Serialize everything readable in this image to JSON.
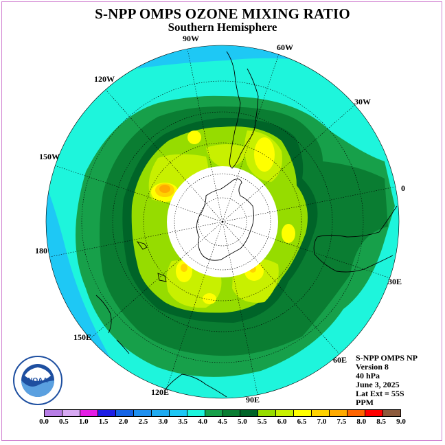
{
  "header": {
    "title": "S-NPP OMPS OZONE MIXING RATIO",
    "subtitle": "Southern Hemisphere"
  },
  "longitude_labels": [
    "90W",
    "60W",
    "30W",
    "0",
    "30E",
    "60E",
    "90E",
    "120E",
    "150E",
    "180",
    "150W",
    "120W"
  ],
  "info": {
    "instrument": "S-NPP OMPS NP",
    "version": "Version 8",
    "level": "40 hPa",
    "date": "June 3, 2025",
    "lat_ext": "Lat Ext = 55S",
    "units": "PPM"
  },
  "logo": {
    "text": "NOAA",
    "ring_text": "NATIONAL OCEANIC AND ATMOSPHERIC ADMINISTRATION · U.S. DEPARTMENT OF COMMERCE"
  },
  "colorbar": {
    "labels": [
      "0.0",
      "0.5",
      "1.0",
      "1.5",
      "2.0",
      "2.5",
      "3.0",
      "3.5",
      "4.0",
      "4.5",
      "5.0",
      "5.5",
      "6.0",
      "6.5",
      "7.0",
      "7.5",
      "8.0",
      "8.5",
      "9.0"
    ],
    "colors": [
      "#b87ee6",
      "#d7a9f2",
      "#e61ee6",
      "#1e1ee6",
      "#1464e6",
      "#1e90f0",
      "#1eaaf0",
      "#1ec8f5",
      "#1ef5dc",
      "#17a04a",
      "#0a7d32",
      "#006428",
      "#96dc00",
      "#c8f000",
      "#ffff00",
      "#ffd200",
      "#ffaa00",
      "#ff6400",
      "#ff0000",
      "#8c5a3c"
    ]
  }
}
